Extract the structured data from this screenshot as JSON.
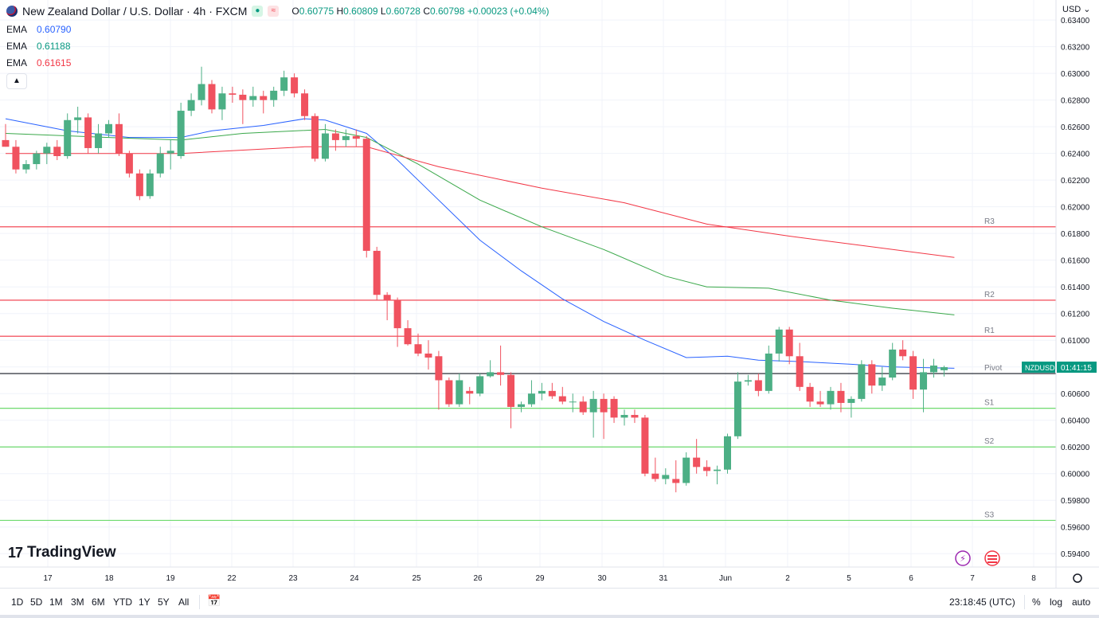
{
  "header": {
    "symbol_title": "New Zealand Dollar / U.S. Dollar · 4h · FXCM",
    "o_label": "O",
    "o_value": "0.60775",
    "h_label": "H",
    "h_value": "0.60809",
    "l_label": "L",
    "l_value": "0.60728",
    "c_label": "C",
    "c_value": "0.60798",
    "change": "+0.00023 (+0.04%)"
  },
  "indicators": [
    {
      "name": "EMA",
      "value": "0.60790",
      "color": "#2962ff"
    },
    {
      "name": "EMA",
      "value": "0.61188",
      "color": "#089981"
    },
    {
      "name": "EMA",
      "value": "0.61615",
      "color": "#f23645"
    }
  ],
  "currency_label": "USD",
  "brand": "TradingView",
  "price_tag": {
    "symbol": "NZDUSD",
    "countdown": "01:41:15"
  },
  "bottom_bar": {
    "ranges": [
      "1D",
      "5D",
      "1M",
      "3M",
      "6M",
      "YTD",
      "1Y",
      "5Y",
      "All"
    ],
    "clock": "23:18:45 (UTC)",
    "percent": "%",
    "log": "log",
    "auto": "auto"
  },
  "colors": {
    "up": "#4caf85",
    "down": "#f0525f",
    "grid": "#f0f3fa",
    "pivot": "#131722",
    "resistance": "#f23645",
    "support": "#4caf50"
  },
  "chart_data": {
    "type": "candlestick",
    "title": "New Zealand Dollar / U.S. Dollar · 4h · FXCM",
    "ylim": [
      0.593,
      0.6355
    ],
    "y_ticks": [
      "0.63400",
      "0.63200",
      "0.63000",
      "0.62800",
      "0.62600",
      "0.62400",
      "0.62200",
      "0.62000",
      "0.61800",
      "0.61600",
      "0.61400",
      "0.61200",
      "0.61000",
      "0.60800",
      "0.60600",
      "0.60400",
      "0.60200",
      "0.60000",
      "0.59800",
      "0.59600",
      "0.59400"
    ],
    "x_ticks": [
      "17",
      "18",
      "19",
      "22",
      "23",
      "24",
      "25",
      "26",
      "29",
      "30",
      "31",
      "Jun",
      "2",
      "5",
      "6",
      "7",
      "8"
    ],
    "candles": [
      {
        "o": 0.625,
        "h": 0.6262,
        "l": 0.6245,
        "c": 0.6245
      },
      {
        "o": 0.6245,
        "h": 0.625,
        "l": 0.6225,
        "c": 0.6228
      },
      {
        "o": 0.6228,
        "h": 0.6235,
        "l": 0.6225,
        "c": 0.6232
      },
      {
        "o": 0.6232,
        "h": 0.6242,
        "l": 0.6228,
        "c": 0.624
      },
      {
        "o": 0.624,
        "h": 0.6248,
        "l": 0.6232,
        "c": 0.6245
      },
      {
        "o": 0.6245,
        "h": 0.625,
        "l": 0.6235,
        "c": 0.6238
      },
      {
        "o": 0.6238,
        "h": 0.627,
        "l": 0.6236,
        "c": 0.6265
      },
      {
        "o": 0.6265,
        "h": 0.6275,
        "l": 0.6255,
        "c": 0.6267
      },
      {
        "o": 0.6267,
        "h": 0.627,
        "l": 0.624,
        "c": 0.6244
      },
      {
        "o": 0.6244,
        "h": 0.6262,
        "l": 0.624,
        "c": 0.6255
      },
      {
        "o": 0.6255,
        "h": 0.6265,
        "l": 0.6252,
        "c": 0.6262
      },
      {
        "o": 0.6262,
        "h": 0.627,
        "l": 0.6238,
        "c": 0.624
      },
      {
        "o": 0.624,
        "h": 0.6242,
        "l": 0.6222,
        "c": 0.6225
      },
      {
        "o": 0.6225,
        "h": 0.6228,
        "l": 0.6205,
        "c": 0.6208
      },
      {
        "o": 0.6208,
        "h": 0.6228,
        "l": 0.6206,
        "c": 0.6225
      },
      {
        "o": 0.6225,
        "h": 0.6245,
        "l": 0.6222,
        "c": 0.624
      },
      {
        "o": 0.624,
        "h": 0.625,
        "l": 0.6228,
        "c": 0.6242
      },
      {
        "o": 0.6238,
        "h": 0.6278,
        "l": 0.6236,
        "c": 0.6272
      },
      {
        "o": 0.6272,
        "h": 0.6285,
        "l": 0.6268,
        "c": 0.628
      },
      {
        "o": 0.628,
        "h": 0.6305,
        "l": 0.6276,
        "c": 0.6292
      },
      {
        "o": 0.6292,
        "h": 0.6295,
        "l": 0.627,
        "c": 0.6273
      },
      {
        "o": 0.6273,
        "h": 0.629,
        "l": 0.6265,
        "c": 0.6285
      },
      {
        "o": 0.6285,
        "h": 0.629,
        "l": 0.6278,
        "c": 0.6284
      },
      {
        "o": 0.6284,
        "h": 0.6288,
        "l": 0.6262,
        "c": 0.628
      },
      {
        "o": 0.628,
        "h": 0.629,
        "l": 0.6275,
        "c": 0.6283
      },
      {
        "o": 0.6283,
        "h": 0.6287,
        "l": 0.627,
        "c": 0.628
      },
      {
        "o": 0.628,
        "h": 0.629,
        "l": 0.6275,
        "c": 0.6287
      },
      {
        "o": 0.6287,
        "h": 0.6302,
        "l": 0.6283,
        "c": 0.6297
      },
      {
        "o": 0.6297,
        "h": 0.63,
        "l": 0.6282,
        "c": 0.6285
      },
      {
        "o": 0.6285,
        "h": 0.6288,
        "l": 0.6265,
        "c": 0.6268
      },
      {
        "o": 0.6268,
        "h": 0.627,
        "l": 0.6234,
        "c": 0.6236
      },
      {
        "o": 0.6236,
        "h": 0.6262,
        "l": 0.6234,
        "c": 0.6255
      },
      {
        "o": 0.6255,
        "h": 0.6258,
        "l": 0.6242,
        "c": 0.625
      },
      {
        "o": 0.625,
        "h": 0.6258,
        "l": 0.6245,
        "c": 0.6253
      },
      {
        "o": 0.6253,
        "h": 0.6258,
        "l": 0.6245,
        "c": 0.6251
      },
      {
        "o": 0.6251,
        "h": 0.6253,
        "l": 0.6162,
        "c": 0.6167
      },
      {
        "o": 0.6167,
        "h": 0.617,
        "l": 0.613,
        "c": 0.6134
      },
      {
        "o": 0.6134,
        "h": 0.6136,
        "l": 0.6115,
        "c": 0.613
      },
      {
        "o": 0.613,
        "h": 0.6132,
        "l": 0.6095,
        "c": 0.6109
      },
      {
        "o": 0.6109,
        "h": 0.6115,
        "l": 0.6096,
        "c": 0.6097
      },
      {
        "o": 0.6097,
        "h": 0.6105,
        "l": 0.6088,
        "c": 0.609
      },
      {
        "o": 0.609,
        "h": 0.61,
        "l": 0.6078,
        "c": 0.6087
      },
      {
        "o": 0.6088,
        "h": 0.6092,
        "l": 0.6048,
        "c": 0.607
      },
      {
        "o": 0.607,
        "h": 0.6072,
        "l": 0.605,
        "c": 0.6052
      },
      {
        "o": 0.6052,
        "h": 0.6075,
        "l": 0.605,
        "c": 0.607
      },
      {
        "o": 0.6062,
        "h": 0.6065,
        "l": 0.6052,
        "c": 0.606
      },
      {
        "o": 0.606,
        "h": 0.6075,
        "l": 0.6058,
        "c": 0.6073
      },
      {
        "o": 0.6073,
        "h": 0.6085,
        "l": 0.6072,
        "c": 0.6076
      },
      {
        "o": 0.6076,
        "h": 0.6096,
        "l": 0.6066,
        "c": 0.6074
      },
      {
        "o": 0.6074,
        "h": 0.6076,
        "l": 0.6034,
        "c": 0.605
      },
      {
        "o": 0.605,
        "h": 0.6054,
        "l": 0.6046,
        "c": 0.6052
      },
      {
        "o": 0.6052,
        "h": 0.607,
        "l": 0.605,
        "c": 0.606
      },
      {
        "o": 0.606,
        "h": 0.6068,
        "l": 0.6055,
        "c": 0.6062
      },
      {
        "o": 0.6062,
        "h": 0.6068,
        "l": 0.6056,
        "c": 0.6058
      },
      {
        "o": 0.6058,
        "h": 0.6065,
        "l": 0.6052,
        "c": 0.6054
      },
      {
        "o": 0.6054,
        "h": 0.606,
        "l": 0.6046,
        "c": 0.6054
      },
      {
        "o": 0.6054,
        "h": 0.6058,
        "l": 0.6044,
        "c": 0.6046
      },
      {
        "o": 0.6046,
        "h": 0.6062,
        "l": 0.6027,
        "c": 0.6056
      },
      {
        "o": 0.6056,
        "h": 0.606,
        "l": 0.6026,
        "c": 0.6046
      },
      {
        "o": 0.6056,
        "h": 0.6058,
        "l": 0.6038,
        "c": 0.6042
      },
      {
        "o": 0.6042,
        "h": 0.6048,
        "l": 0.6036,
        "c": 0.6044
      },
      {
        "o": 0.6044,
        "h": 0.6048,
        "l": 0.6038,
        "c": 0.6042
      },
      {
        "o": 0.6042,
        "h": 0.6044,
        "l": 0.5998,
        "c": 0.6
      },
      {
        "o": 0.6,
        "h": 0.6012,
        "l": 0.5994,
        "c": 0.5996
      },
      {
        "o": 0.5996,
        "h": 0.6004,
        "l": 0.5992,
        "c": 0.5999
      },
      {
        "o": 0.5996,
        "h": 0.601,
        "l": 0.5986,
        "c": 0.5993
      },
      {
        "o": 0.5993,
        "h": 0.6016,
        "l": 0.5991,
        "c": 0.6012
      },
      {
        "o": 0.6012,
        "h": 0.6026,
        "l": 0.6,
        "c": 0.6005
      },
      {
        "o": 0.6005,
        "h": 0.601,
        "l": 0.5998,
        "c": 0.6002
      },
      {
        "o": 0.6002,
        "h": 0.6006,
        "l": 0.5992,
        "c": 0.6003
      },
      {
        "o": 0.6003,
        "h": 0.603,
        "l": 0.6,
        "c": 0.6028
      },
      {
        "o": 0.6028,
        "h": 0.6076,
        "l": 0.6026,
        "c": 0.6069
      },
      {
        "o": 0.6069,
        "h": 0.6074,
        "l": 0.6066,
        "c": 0.607
      },
      {
        "o": 0.607,
        "h": 0.6075,
        "l": 0.6058,
        "c": 0.6062
      },
      {
        "o": 0.6062,
        "h": 0.6096,
        "l": 0.606,
        "c": 0.609
      },
      {
        "o": 0.609,
        "h": 0.611,
        "l": 0.6084,
        "c": 0.6108
      },
      {
        "o": 0.6108,
        "h": 0.611,
        "l": 0.6082,
        "c": 0.6088
      },
      {
        "o": 0.6088,
        "h": 0.6098,
        "l": 0.6062,
        "c": 0.6065
      },
      {
        "o": 0.6065,
        "h": 0.6068,
        "l": 0.605,
        "c": 0.6054
      },
      {
        "o": 0.6054,
        "h": 0.6062,
        "l": 0.605,
        "c": 0.6052
      },
      {
        "o": 0.6052,
        "h": 0.6065,
        "l": 0.6048,
        "c": 0.6062
      },
      {
        "o": 0.6062,
        "h": 0.6068,
        "l": 0.6046,
        "c": 0.6053
      },
      {
        "o": 0.6053,
        "h": 0.6058,
        "l": 0.6042,
        "c": 0.6056
      },
      {
        "o": 0.6056,
        "h": 0.6085,
        "l": 0.6054,
        "c": 0.6082
      },
      {
        "o": 0.6082,
        "h": 0.6085,
        "l": 0.606,
        "c": 0.6066
      },
      {
        "o": 0.6066,
        "h": 0.608,
        "l": 0.6062,
        "c": 0.6072
      },
      {
        "o": 0.6072,
        "h": 0.6098,
        "l": 0.607,
        "c": 0.6093
      },
      {
        "o": 0.6093,
        "h": 0.61,
        "l": 0.6085,
        "c": 0.6088
      },
      {
        "o": 0.6088,
        "h": 0.6092,
        "l": 0.6056,
        "c": 0.6063
      },
      {
        "o": 0.6063,
        "h": 0.6086,
        "l": 0.6046,
        "c": 0.6076
      },
      {
        "o": 0.6076,
        "h": 0.6086,
        "l": 0.6072,
        "c": 0.6081
      },
      {
        "o": 0.60775,
        "h": 0.60809,
        "l": 0.60728,
        "c": 0.60798
      }
    ],
    "series": [
      {
        "name": "EMA",
        "color": "#2962ff",
        "values": [
          [
            0,
            0.6266
          ],
          [
            6,
            0.6257
          ],
          [
            12,
            0.6252
          ],
          [
            17,
            0.6252
          ],
          [
            20,
            0.6257
          ],
          [
            25,
            0.6261
          ],
          [
            29,
            0.6266
          ],
          [
            31,
            0.6265
          ],
          [
            35,
            0.6255
          ],
          [
            38,
            0.6235
          ],
          [
            42,
            0.6205
          ],
          [
            46,
            0.6175
          ],
          [
            50,
            0.6152
          ],
          [
            54,
            0.6131
          ],
          [
            58,
            0.6114
          ],
          [
            62,
            0.61
          ],
          [
            66,
            0.6087
          ],
          [
            70,
            0.6088
          ],
          [
            73,
            0.6085
          ],
          [
            77,
            0.6084
          ],
          [
            82,
            0.6082
          ],
          [
            86,
            0.608
          ],
          [
            92,
            0.6079
          ]
        ]
      },
      {
        "name": "EMA",
        "color": "#089981",
        "values": [
          [
            0,
            0.6255
          ],
          [
            10,
            0.6252
          ],
          [
            17,
            0.625
          ],
          [
            23,
            0.6255
          ],
          [
            31,
            0.6258
          ],
          [
            35,
            0.6252
          ],
          [
            40,
            0.6232
          ],
          [
            46,
            0.6205
          ],
          [
            52,
            0.6185
          ],
          [
            58,
            0.6168
          ],
          [
            64,
            0.6148
          ],
          [
            68,
            0.614
          ],
          [
            74,
            0.6139
          ],
          [
            80,
            0.613
          ],
          [
            86,
            0.6124
          ],
          [
            92,
            0.6119
          ]
        ]
      },
      {
        "name": "EMA",
        "color": "#f23645",
        "values": [
          [
            0,
            0.624
          ],
          [
            17,
            0.624
          ],
          [
            29,
            0.6245
          ],
          [
            35,
            0.6245
          ],
          [
            42,
            0.623
          ],
          [
            52,
            0.6214
          ],
          [
            60,
            0.6203
          ],
          [
            68,
            0.6187
          ],
          [
            76,
            0.6178
          ],
          [
            84,
            0.617
          ],
          [
            92,
            0.6162
          ]
        ]
      }
    ],
    "pivot_lines": [
      {
        "label": "R3",
        "value": 0.6185,
        "kind": "resistance"
      },
      {
        "label": "R2",
        "value": 0.613,
        "kind": "resistance"
      },
      {
        "label": "R1",
        "value": 0.6103,
        "kind": "resistance"
      },
      {
        "label": "Pivot",
        "value": 0.6075,
        "kind": "pivot"
      },
      {
        "label": "S1",
        "value": 0.6049,
        "kind": "support"
      },
      {
        "label": "S2",
        "value": 0.602,
        "kind": "support"
      },
      {
        "label": "S3",
        "value": 0.5965,
        "kind": "support"
      }
    ]
  }
}
